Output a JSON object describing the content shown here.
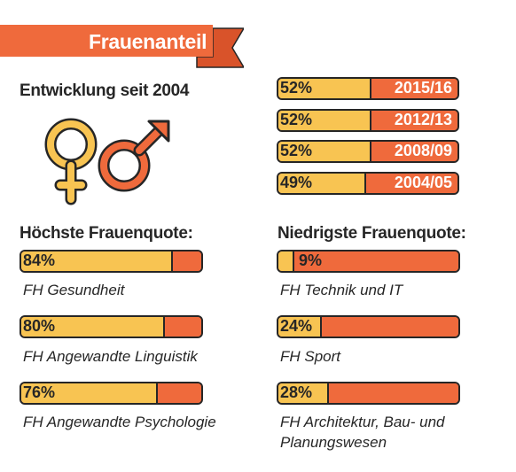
{
  "title": "Frauenanteil",
  "development": {
    "heading": "Entwicklung seit 2004"
  },
  "highest": {
    "heading": "Höchste Frauenquote:"
  },
  "lowest": {
    "heading": "Niedrigste Frauenquote:"
  },
  "symbols": [
    "female-symbol-icon",
    "male-symbol-icon"
  ],
  "colors": {
    "female": "#f8c452",
    "male": "#ef6a3c",
    "outline": "#262626",
    "banner": "#ef6a3c"
  },
  "chart_data": [
    {
      "type": "bar",
      "title": "Entwicklung seit 2004",
      "categories": [
        "2015/16",
        "2012/13",
        "2008/09",
        "2004/05"
      ],
      "values": [
        52,
        52,
        52,
        49
      ],
      "labels": [
        "52%",
        "52%",
        "52%",
        "49%"
      ],
      "ylim": [
        0,
        100
      ]
    },
    {
      "type": "bar",
      "title": "Höchste Frauenquote:",
      "categories": [
        "FH Gesundheit",
        "FH Angewandte Linguistik",
        "FH Angewandte Psychologie"
      ],
      "values": [
        84,
        80,
        76
      ],
      "labels": [
        "84%",
        "80%",
        "76%"
      ],
      "ylim": [
        0,
        100
      ]
    },
    {
      "type": "bar",
      "title": "Niedrigste Frauenquote:",
      "categories": [
        "FH Technik und IT",
        "FH Sport",
        "FH Architektur, Bau- und Planungswesen"
      ],
      "values": [
        9,
        24,
        28
      ],
      "labels": [
        "9%",
        "24%",
        "28%"
      ],
      "ylim": [
        0,
        100
      ]
    }
  ]
}
